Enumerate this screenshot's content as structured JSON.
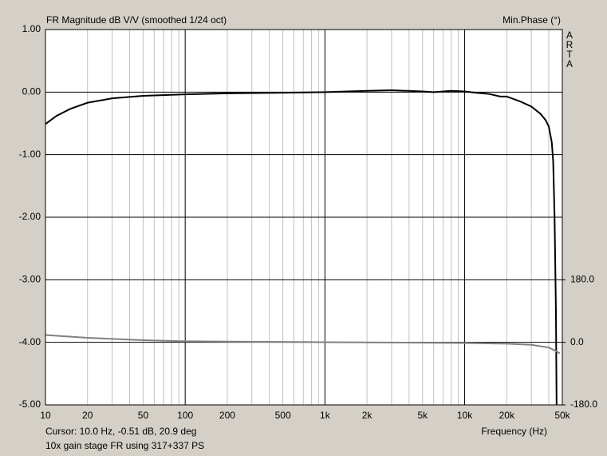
{
  "chart_data": {
    "type": "line",
    "title": "FR Magnitude dB V/V (smoothed 1/24 oct)",
    "y2_title": "Min.Phase (°)",
    "brand": "ARTA",
    "cursor": "Cursor: 10.0 Hz, -0.51 dB, 20.9 deg",
    "note": "10x gain stage FR using 317+337 PS",
    "x_label": "Frequency (Hz)",
    "log_x": true,
    "xlim": [
      10,
      50000
    ],
    "xticks": [
      10,
      20,
      50,
      100,
      200,
      500,
      {
        "value": 1000,
        "label": "1k"
      },
      {
        "value": 2000,
        "label": "2k"
      },
      {
        "value": 5000,
        "label": "5k"
      },
      {
        "value": 10000,
        "label": "10k"
      },
      {
        "value": 20000,
        "label": "20k"
      },
      {
        "value": 50000,
        "label": "50k"
      }
    ],
    "x_minor_grid": [
      30,
      40,
      60,
      70,
      80,
      90,
      300,
      400,
      600,
      700,
      800,
      900,
      3000,
      4000,
      6000,
      7000,
      8000,
      9000,
      30000,
      40000
    ],
    "ylim": [
      -5,
      1
    ],
    "yticks": [
      {
        "value": 1,
        "label": "1.00"
      },
      {
        "value": 0,
        "label": "0.00"
      },
      {
        "value": -1,
        "label": "-1.00"
      },
      {
        "value": -2,
        "label": "-2.00"
      },
      {
        "value": -3,
        "label": "-3.00"
      },
      {
        "value": -4,
        "label": "-4.00"
      },
      {
        "value": -5,
        "label": "-5.00"
      }
    ],
    "y2lim": [
      -180,
      900
    ],
    "y2ticks": [
      {
        "value": 180,
        "label": "180.0"
      },
      {
        "value": 0,
        "label": "0.0"
      },
      {
        "value": -180,
        "label": "-180.0"
      }
    ],
    "grid": true,
    "series": [
      {
        "color": "#000000",
        "x": [
          10,
          12,
          15,
          20,
          30,
          50,
          100,
          200,
          500,
          1000,
          2000,
          3000,
          5000,
          6000,
          8000,
          10000,
          12000,
          15000,
          18000,
          20000,
          25000,
          30000,
          35000,
          38000,
          40000,
          42000,
          43000,
          44000,
          45000,
          45500
        ],
        "values": [
          -0.51,
          -0.38,
          -0.27,
          -0.17,
          -0.1,
          -0.06,
          -0.035,
          -0.02,
          -0.01,
          0,
          0.02,
          0.03,
          0.01,
          0,
          0.02,
          0.01,
          -0.01,
          -0.03,
          -0.07,
          -0.07,
          -0.15,
          -0.23,
          -0.35,
          -0.45,
          -0.55,
          -0.8,
          -1.1,
          -2.0,
          -3.5,
          -5.0
        ]
      },
      {
        "color": "#808080",
        "axis": "y2",
        "x": [
          10,
          20,
          50,
          100,
          200,
          650,
          1000,
          5000,
          10000,
          20000,
          30000,
          40000,
          45000,
          48000
        ],
        "values": [
          21,
          13,
          6,
          3,
          2,
          1,
          0.5,
          -1,
          -2,
          -4,
          -7,
          -15,
          -25,
          -32
        ]
      }
    ]
  }
}
